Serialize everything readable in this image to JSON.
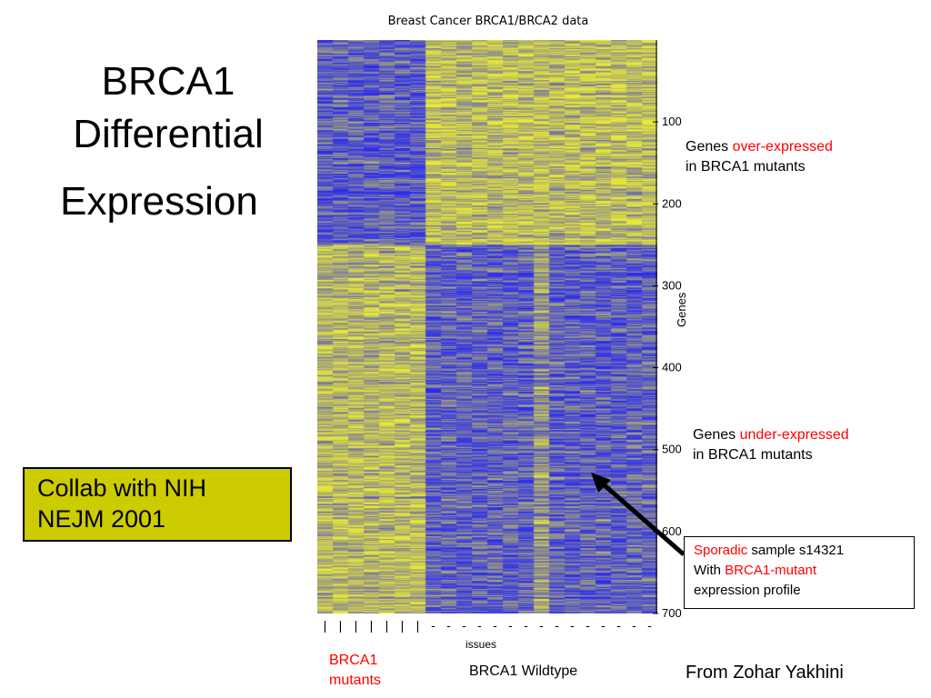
{
  "slide": {
    "title_line1": "BRCA1",
    "title_line2": "Differential",
    "title_line3": "Expression",
    "collab_line1": "Collab with NIH",
    "collab_line2": "NEJM 2001",
    "credit": "From Zohar Yakhini",
    "colors": {
      "high": "#e8e833",
      "low": "#2b2bee",
      "mid": "#8c8c8c",
      "accent_red": "#ff0000",
      "box": "#cccc00"
    }
  },
  "annotations": {
    "over_prefix": "Genes ",
    "over_red": "over-expressed",
    "over_suffix": "in BRCA1 mutants",
    "under_prefix": "Genes ",
    "under_red": "under-expressed",
    "under_suffix": "in BRCA1 mutants",
    "sporadic_red": "Sporadic",
    "sporadic_rest": " sample s14321",
    "with_prefix": "With ",
    "with_red": "BRCA1-mutant",
    "profile": "expression profile"
  },
  "chart_data": {
    "type": "heatmap",
    "title": "Breast Cancer BRCA1/BRCA2 data",
    "xlabel": "issues",
    "ylabel": "Genes",
    "y_ticks": [
      100,
      200,
      300,
      400,
      500,
      600,
      700
    ],
    "ylim": [
      0,
      700
    ],
    "n_rows": 700,
    "n_columns": 22,
    "column_groups": [
      {
        "name": "BRCA1 mutants",
        "count": 7,
        "marker": "|"
      },
      {
        "name": "BRCA1 Wildtype",
        "count": 15,
        "marker": "-"
      }
    ],
    "group_labels": {
      "mutants_line1": "BRCA1",
      "mutants_line2": "mutants",
      "wildtype": "BRCA1 Wildtype"
    },
    "pattern": "rows 1-250 higher in wildtype columns (yellow), lower in mutant columns (blue); rows 250-700 higher in mutant columns, lower in wildtype; wildtype column 14 (sample s14321) follows mutant profile in lower rows",
    "highlight_column": 14
  }
}
